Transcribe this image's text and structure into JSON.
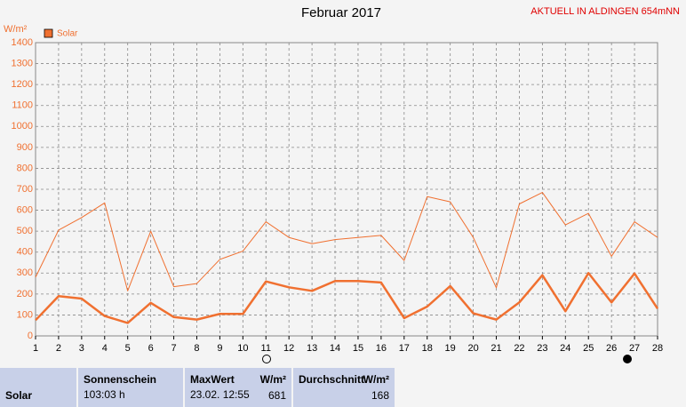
{
  "chart_data": {
    "type": "line",
    "title": "Februar 2017",
    "station": "AKTUELL IN ALDINGEN 654mNN",
    "ylabel": "W/m²",
    "legend": "Solar",
    "legend_color": "#f07030",
    "categories": [
      "1",
      "2",
      "3",
      "4",
      "5",
      "6",
      "7",
      "8",
      "9",
      "10",
      "11",
      "12",
      "13",
      "14",
      "15",
      "16",
      "17",
      "18",
      "19",
      "20",
      "21",
      "22",
      "23",
      "24",
      "25",
      "26",
      "27",
      "28"
    ],
    "series": [
      {
        "color": "#f07030",
        "width": 1,
        "values": [
          280,
          505,
          565,
          635,
          215,
          500,
          235,
          250,
          365,
          405,
          545,
          470,
          440,
          460,
          470,
          480,
          360,
          665,
          640,
          470,
          230,
          630,
          685,
          530,
          585,
          380,
          545,
          470
        ]
      },
      {
        "color": "#f07030",
        "width": 2.5,
        "values": [
          75,
          190,
          178,
          95,
          62,
          158,
          90,
          78,
          105,
          105,
          260,
          232,
          215,
          262,
          262,
          255,
          85,
          140,
          238,
          108,
          78,
          160,
          290,
          118,
          300,
          160,
          298,
          130
        ]
      }
    ],
    "ylim": [
      0,
      1400
    ],
    "yticks": [
      0,
      100,
      200,
      300,
      400,
      500,
      600,
      700,
      800,
      900,
      1000,
      1100,
      1200,
      1300,
      1400
    ],
    "grid": true
  },
  "table": {
    "row_label": "Solar",
    "sunshine": {
      "header": "Sonnenschein",
      "value": "103:03 h"
    },
    "max": {
      "header": "MaxWert",
      "unit": "W/m²",
      "date": "23.02.  12:55",
      "value": "681"
    },
    "avg": {
      "header": "Durchschnitt",
      "unit": "W/m²",
      "value": "168"
    }
  }
}
